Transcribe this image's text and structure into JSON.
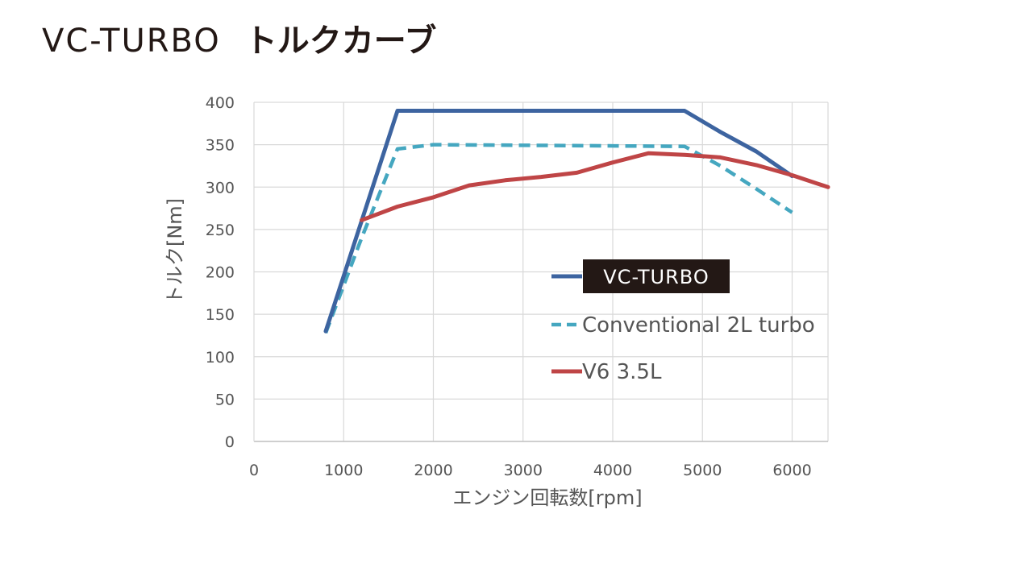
{
  "page": {
    "title_latin": "VC-TURBO",
    "title_jp": "トルクカーブ"
  },
  "chart_data": {
    "type": "line",
    "xlabel": "エンジン回転数[rpm]",
    "ylabel": "トルク[Nm]",
    "xlim": [
      0,
      6400
    ],
    "ylim": [
      0,
      400
    ],
    "xticks": [
      0,
      1000,
      2000,
      3000,
      4000,
      5000,
      6000
    ],
    "yticks": [
      0,
      50,
      100,
      150,
      200,
      250,
      300,
      350,
      400
    ],
    "grid": true,
    "legend_position": "right",
    "series": [
      {
        "name": "VC-TURBO",
        "style": "solid",
        "color": "#3d64a0",
        "x": [
          800,
          1600,
          4800,
          5200,
          5600,
          6000
        ],
        "y": [
          130,
          390,
          390,
          365,
          342,
          313
        ]
      },
      {
        "name": "Conventional 2L turbo",
        "style": "dashed",
        "color": "#45a7c0",
        "x": [
          800,
          1200,
          1600,
          2000,
          4800,
          5200,
          5600,
          6000
        ],
        "y": [
          128,
          240,
          345,
          350,
          348,
          325,
          298,
          270
        ]
      },
      {
        "name": "V6 3.5L",
        "style": "solid",
        "color": "#bf4546",
        "x": [
          1200,
          1600,
          2000,
          2400,
          2800,
          3200,
          3600,
          4000,
          4400,
          4800,
          5200,
          5600,
          6000,
          6400
        ],
        "y": [
          261,
          277,
          288,
          302,
          308,
          312,
          317,
          329,
          340,
          338,
          335,
          326,
          314,
          300
        ]
      }
    ]
  }
}
